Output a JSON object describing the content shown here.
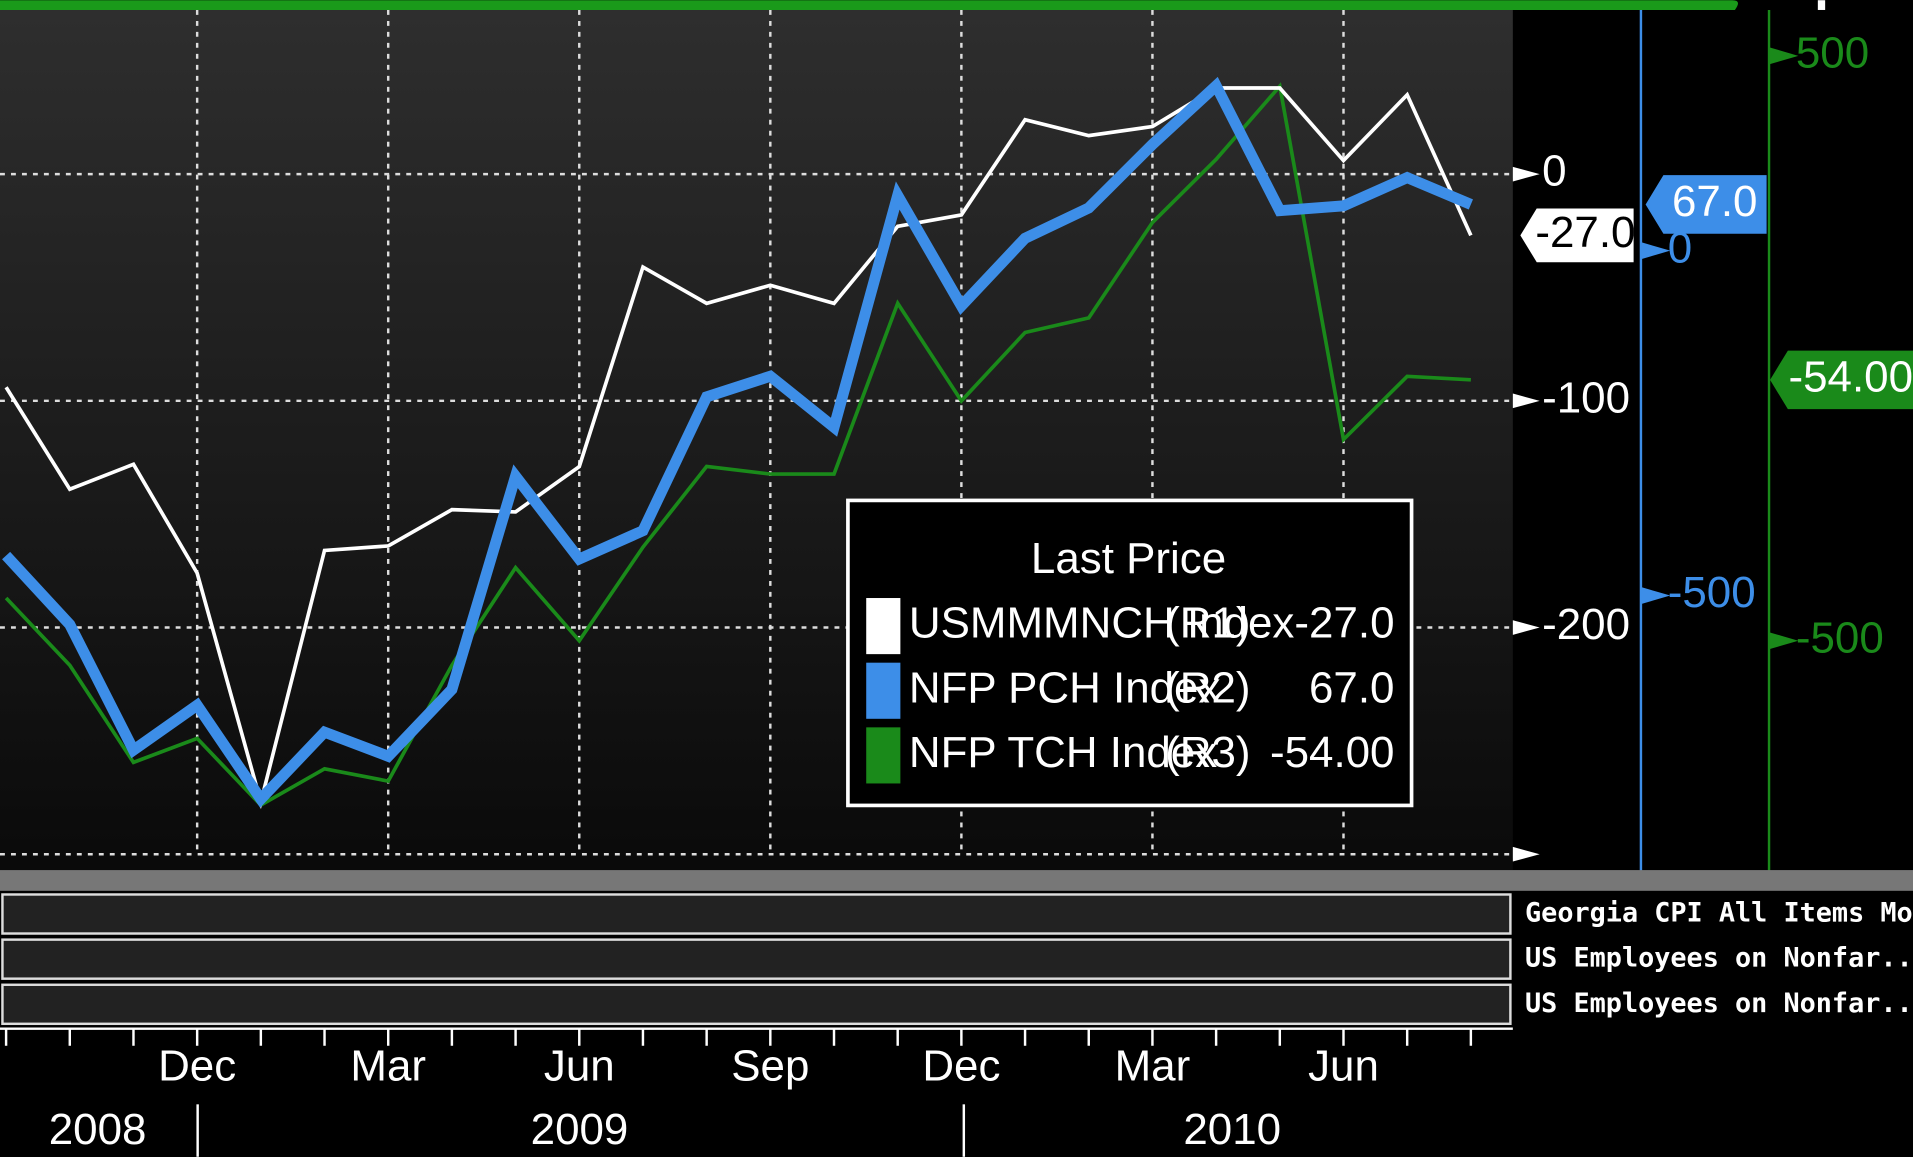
{
  "chart_data": {
    "type": "line",
    "legend_title": "Last Price",
    "categories": [
      null,
      null,
      null,
      "Dec",
      null,
      null,
      "Mar",
      null,
      null,
      "Jun",
      null,
      null,
      "Sep",
      null,
      null,
      "Dec",
      null,
      null,
      "Mar",
      null,
      null,
      "Jun",
      null,
      null
    ],
    "year_labels": [
      "2008",
      "2009",
      "2010"
    ],
    "ylim": [
      -300,
      70
    ],
    "yticks": [
      0,
      -100,
      -200
    ],
    "y2lim": [
      -875,
      341
    ],
    "y2ticks": [
      0,
      -500
    ],
    "y3lim": [
      -865,
      569
    ],
    "y3ticks": [
      500,
      -500
    ],
    "grid": true,
    "series": [
      {
        "name": "USMMMNCH Index",
        "legend_axis": "(R1)",
        "last_label": "-27.0",
        "axis": "y",
        "color": "#ffffff",
        "values": [
          -94,
          -139,
          -128,
          -176,
          -277,
          -166,
          -164,
          -148,
          -149,
          -129,
          -41,
          -57,
          -49,
          -57,
          -23,
          -18,
          24,
          17,
          21,
          38,
          38,
          6,
          35,
          -27
        ]
      },
      {
        "name": "NFP PCH Index",
        "legend_axis": "(R2)",
        "last_label": "67.0",
        "axis": "y2",
        "color": "#3d8ee8",
        "values": [
          -442,
          -542,
          -724,
          -659,
          -795,
          -698,
          -733,
          -636,
          -327,
          -447,
          -406,
          -212,
          -182,
          -256,
          80,
          -80,
          18,
          62,
          154,
          239,
          58,
          65,
          106,
          67
        ]
      },
      {
        "name": "NFP TCH Index",
        "legend_axis": "(R3)",
        "last_label": "-54.00",
        "axis": "y3",
        "color": "#1a8a1a",
        "values": [
          -427,
          -542,
          -708,
          -667,
          -781,
          -719,
          -740,
          -542,
          -375,
          -500,
          -340,
          -202,
          -215,
          -215,
          77,
          -90,
          27,
          52,
          215,
          323,
          448,
          -156,
          -48,
          -54
        ]
      }
    ],
    "panel_labels": [
      "Georgia CPI All Items MoM",
      "US Employees on Nonfar...",
      "US Employees on Nonfar..."
    ]
  }
}
